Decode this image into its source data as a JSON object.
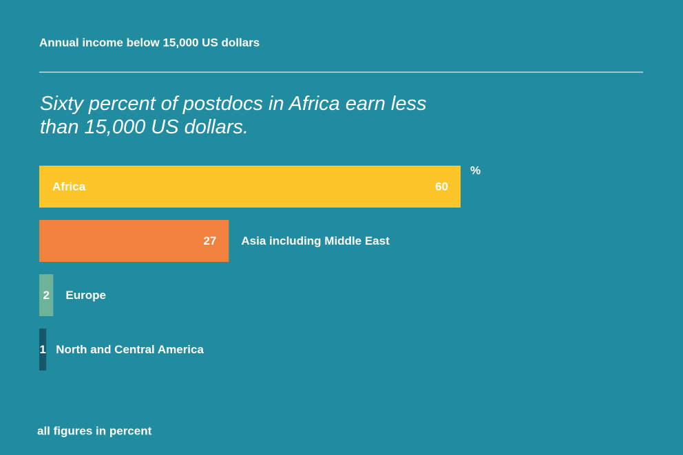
{
  "chart_data": {
    "type": "bar",
    "orientation": "horizontal",
    "title": "Annual income below 15,000 US dollars",
    "subtitle": "Sixty percent of postdocs in Africa earn less than 15,000 US dollars.",
    "unit": "%",
    "categories": [
      "Africa",
      "Asia including Middle East",
      "Europe",
      "North and Central America"
    ],
    "values": [
      60,
      27,
      2,
      1
    ],
    "colors": [
      "#fcc62a",
      "#f0813f",
      "#6cb39a",
      "#165769"
    ],
    "footnote": "all figures in percent"
  }
}
